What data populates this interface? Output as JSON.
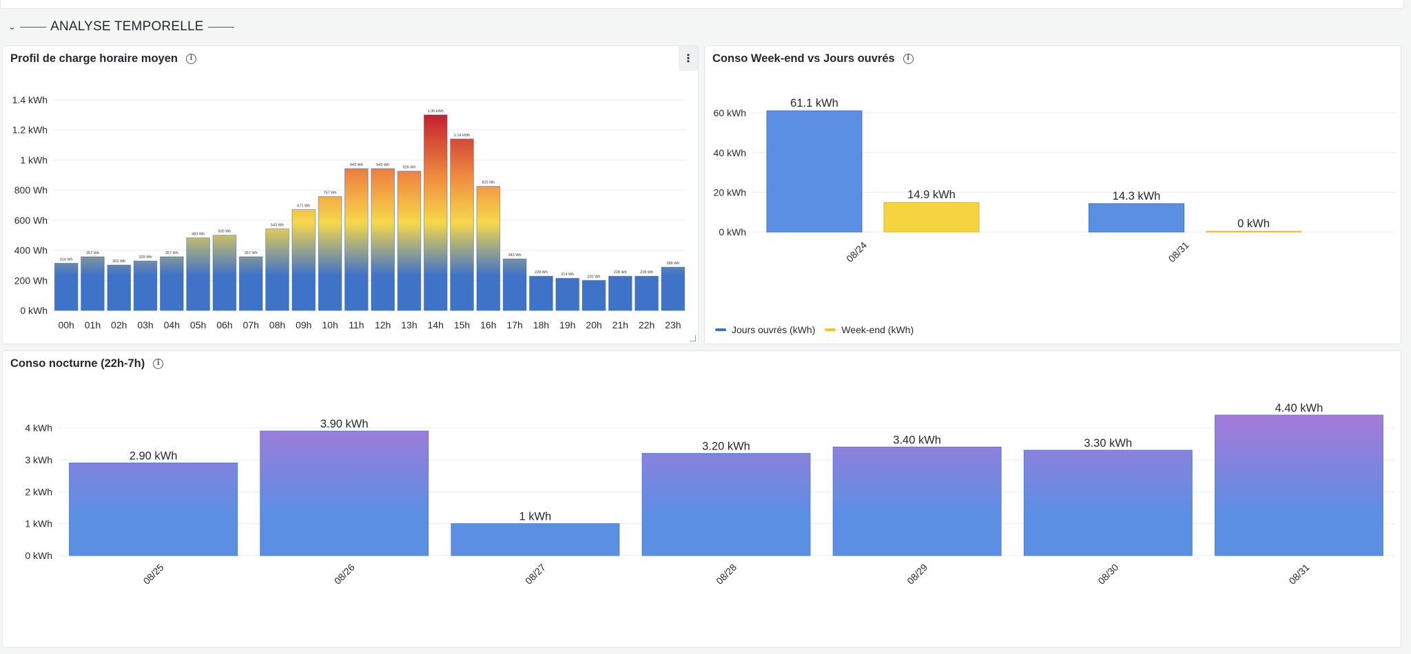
{
  "row": {
    "title": "ANALYSE TEMPORELLE"
  },
  "colors": {
    "blue": "#5a8fe3",
    "yellow": "#f5d53f",
    "purple": "#a57ad8",
    "heat_low": "#3f73c8",
    "heat_mid": "#f6d84a",
    "heat_high": "#c4202f"
  },
  "panels": {
    "hourly": {
      "title": "Profil de charge horaire moyen"
    },
    "weekend": {
      "title": "Conso Week-end vs Jours ouvrés",
      "legend": [
        {
          "label": "Jours ouvrés (kWh)",
          "color": "#3f73c8"
        },
        {
          "label": "Week-end (kWh)",
          "color": "#f5c518"
        }
      ]
    },
    "night": {
      "title": "Conso nocturne (22h-7h)"
    }
  },
  "chart_data": [
    {
      "type": "bar",
      "title": "Profil de charge horaire moyen",
      "unit": "Wh",
      "categories": [
        "00h",
        "01h",
        "02h",
        "03h",
        "04h",
        "05h",
        "06h",
        "07h",
        "08h",
        "09h",
        "10h",
        "11h",
        "12h",
        "13h",
        "14h",
        "15h",
        "16h",
        "17h",
        "18h",
        "19h",
        "20h",
        "21h",
        "22h",
        "23h"
      ],
      "values": [
        314,
        357,
        302,
        329,
        357,
        483,
        500,
        357,
        543,
        671,
        757,
        943,
        943,
        926,
        1300,
        1140,
        825,
        343,
        228,
        214,
        200,
        228,
        228,
        288
      ],
      "data_labels": [
        "314 Wh",
        "357 Wh",
        "302 Wh",
        "329 Wh",
        "357 Wh",
        "483 Wh",
        "500 Wh",
        "357 Wh",
        "543 Wh",
        "671 Wh",
        "757 Wh",
        "943 Wh",
        "943 Wh",
        "926 Wh",
        "1.30 kWh",
        "1.14 kWh",
        "825 Wh",
        "343 Wh",
        "228 Wh",
        "214 Wh",
        "200 Wh",
        "228 Wh",
        "228 Wh",
        "288 Wh"
      ],
      "y_ticks": [
        {
          "value": 0,
          "label": "0 kWh"
        },
        {
          "value": 200,
          "label": "200 Wh"
        },
        {
          "value": 400,
          "label": "400 Wh"
        },
        {
          "value": 600,
          "label": "600 Wh"
        },
        {
          "value": 800,
          "label": "800 Wh"
        },
        {
          "value": 1000,
          "label": "1 kWh"
        },
        {
          "value": 1200,
          "label": "1.2 kWh"
        },
        {
          "value": 1400,
          "label": "1.4 kWh"
        }
      ],
      "ylim": [
        0,
        1400
      ],
      "grid": true
    },
    {
      "type": "bar",
      "title": "Conso Week-end vs Jours ouvrés",
      "categories": [
        "08/24",
        "08/31"
      ],
      "series": [
        {
          "name": "Jours ouvrés (kWh)",
          "values": [
            61.1,
            14.3
          ],
          "labels": [
            "61.1 kWh",
            "14.3 kWh"
          ]
        },
        {
          "name": "Week-end (kWh)",
          "values": [
            14.9,
            0
          ],
          "labels": [
            "14.9 kWh",
            "0 kWh"
          ]
        }
      ],
      "y_ticks": [
        {
          "value": 0,
          "label": "0 kWh"
        },
        {
          "value": 20,
          "label": "20 kWh"
        },
        {
          "value": 40,
          "label": "40 kWh"
        },
        {
          "value": 60,
          "label": "60 kWh"
        }
      ],
      "ylim": [
        0,
        61.1
      ],
      "legend_position": "bottom-left",
      "grid": true
    },
    {
      "type": "bar",
      "title": "Conso nocturne (22h-7h)",
      "categories": [
        "08/25",
        "08/26",
        "08/27",
        "08/28",
        "08/29",
        "08/30",
        "08/31"
      ],
      "values": [
        2.9,
        3.9,
        1.0,
        3.2,
        3.4,
        3.3,
        4.4
      ],
      "data_labels": [
        "2.90 kWh",
        "3.90 kWh",
        "1 kWh",
        "3.20 kWh",
        "3.40 kWh",
        "3.30 kWh",
        "4.40 kWh"
      ],
      "y_ticks": [
        {
          "value": 0,
          "label": "0 kWh"
        },
        {
          "value": 1,
          "label": "1 kWh"
        },
        {
          "value": 2,
          "label": "2 kWh"
        },
        {
          "value": 3,
          "label": "3 kWh"
        },
        {
          "value": 4,
          "label": "4 kWh"
        }
      ],
      "ylim": [
        0,
        4.4
      ],
      "grid": true
    }
  ]
}
